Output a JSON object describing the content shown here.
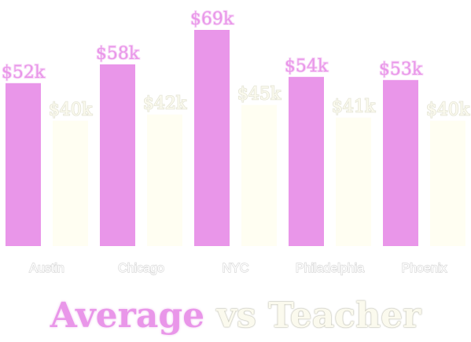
{
  "chart_data": {
    "type": "bar",
    "title_parts": {
      "series_a": "Average",
      "joiner": "vs",
      "series_b": "Teacher"
    },
    "categories": [
      "Austin",
      "Chicago",
      "NYC",
      "Philadelphia",
      "Phoenix"
    ],
    "series": [
      {
        "name": "Average",
        "values": [
          52,
          58,
          69,
          54,
          53
        ],
        "labels": [
          "$52k",
          "$58k",
          "$69k",
          "$54k",
          "$53k"
        ],
        "color": "#e996e9"
      },
      {
        "name": "Teacher",
        "values": [
          40,
          42,
          45,
          41,
          40
        ],
        "labels": [
          "$40k",
          "$42k",
          "$45k",
          "$41k",
          "$40k"
        ],
        "color": "#fffef2"
      }
    ],
    "unit": "$k",
    "ylim": [
      0,
      69
    ],
    "grid": false,
    "legend": "none"
  }
}
